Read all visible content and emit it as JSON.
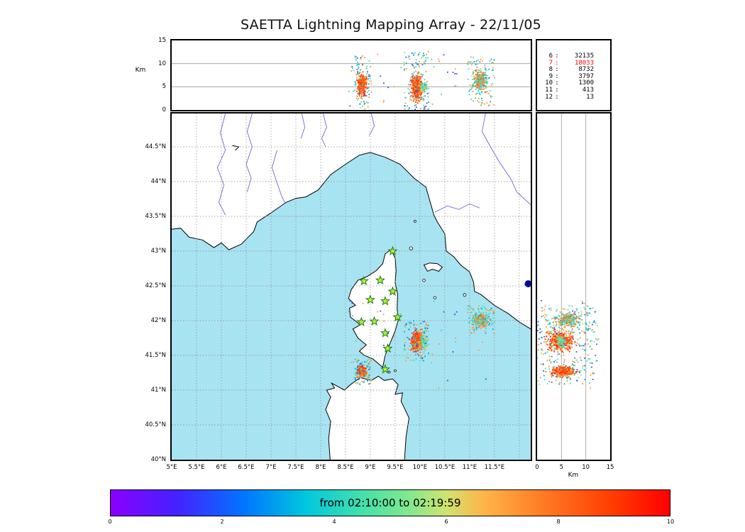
{
  "title": "SAETTA Lightning Mapping Array - 22/11/05",
  "axes": {
    "km_label_top": "Km",
    "km_label_right": "Km"
  },
  "legend": {
    "rows": [
      {
        "stations": "6",
        "count": "32135",
        "color": "#000000"
      },
      {
        "stations": "7",
        "count": "18033",
        "color": "#ff0000"
      },
      {
        "stations": "8",
        "count": "8732",
        "color": "#000000"
      },
      {
        "stations": "9",
        "count": "3797",
        "color": "#000000"
      },
      {
        "stations": "10",
        "count": "1300",
        "color": "#000000"
      },
      {
        "stations": "11",
        "count": "413",
        "color": "#000000"
      },
      {
        "stations": "12",
        "count": "13",
        "color": "#000000"
      }
    ]
  },
  "colorbar": {
    "label": "from 02:10:00 to 02:19:59",
    "ticks": [
      "0",
      "2",
      "4",
      "6",
      "8",
      "10"
    ],
    "tick_values": [
      0,
      2,
      4,
      6,
      8,
      10
    ],
    "range": [
      0,
      10
    ],
    "gradient": [
      "#8b00ff 0%",
      "#4422ff 12%",
      "#0077ff 24%",
      "#00c8dd 35%",
      "#44e0aa 45%",
      "#7fe88f 53%",
      "#cfe470 60%",
      "#ffb347 67%",
      "#ff7722 78%",
      "#ff3b00 90%",
      "#ff0000 100%"
    ]
  },
  "chart_data": {
    "type": "scatter",
    "title": "SAETTA Lightning Mapping Array - 22/11/05",
    "panels": [
      "altitude-vs-longitude",
      "map-lat-lon",
      "altitude-vs-latitude"
    ],
    "time_window": {
      "from": "02:10:00",
      "to": "02:19:59"
    },
    "lon_range": [
      5,
      12.23
    ],
    "lat_range": [
      40,
      44.98
    ],
    "alt_range": [
      0,
      15
    ],
    "alt_ticks": [
      {
        "v": 0,
        "label": "0"
      },
      {
        "v": 5,
        "label": "5"
      },
      {
        "v": 10,
        "label": "10"
      },
      {
        "v": 15,
        "label": "15"
      }
    ],
    "grid_alt": [
      5,
      10
    ],
    "lat_ticks": [
      {
        "v": 44.5,
        "label": "44.5°N"
      },
      {
        "v": 44,
        "label": "44°N"
      },
      {
        "v": 43.5,
        "label": "43.5°N"
      },
      {
        "v": 43,
        "label": "43°N"
      },
      {
        "v": 42.5,
        "label": "42.5°N"
      },
      {
        "v": 42,
        "label": "42°N"
      },
      {
        "v": 41.5,
        "label": "41.5°N"
      },
      {
        "v": 41,
        "label": "41°N"
      },
      {
        "v": 40.5,
        "label": "40.5°N"
      },
      {
        "v": 40,
        "label": "40°N"
      }
    ],
    "lon_ticks": [
      {
        "v": 5,
        "label": "5°E"
      },
      {
        "v": 5.5,
        "label": "5.5°E"
      },
      {
        "v": 6,
        "label": "6°E"
      },
      {
        "v": 6.5,
        "label": "6.5°E"
      },
      {
        "v": 7,
        "label": "7°E"
      },
      {
        "v": 7.5,
        "label": "7.5°E"
      },
      {
        "v": 8,
        "label": "8°E"
      },
      {
        "v": 8.5,
        "label": "8.5°E"
      },
      {
        "v": 9,
        "label": "9°E"
      },
      {
        "v": 9.5,
        "label": "9.5°E"
      },
      {
        "v": 10,
        "label": "10°E"
      },
      {
        "v": 10.5,
        "label": "10.5°E"
      },
      {
        "v": 11,
        "label": "11°E"
      },
      {
        "v": 11.5,
        "label": "11.5°E"
      }
    ],
    "station_source_counts": {
      "6": 32135,
      "7": 18033,
      "8": 8732,
      "9": 3797,
      "10": 1300,
      "11": 413,
      "12": 13
    },
    "sea_color": "#a8e3f2",
    "stations_lonlat": [
      [
        9.45,
        43.0
      ],
      [
        8.87,
        42.57
      ],
      [
        9.2,
        42.58
      ],
      [
        9.45,
        42.42
      ],
      [
        9.0,
        42.3
      ],
      [
        9.3,
        42.28
      ],
      [
        9.55,
        42.05
      ],
      [
        8.82,
        41.98
      ],
      [
        9.08,
        41.99
      ],
      [
        9.3,
        41.82
      ],
      [
        9.35,
        41.6
      ],
      [
        9.3,
        41.3
      ]
    ],
    "clusters": [
      {
        "name": "sw-corsica-core",
        "lon": [
          8.7,
          8.96
        ],
        "lat": [
          41.16,
          41.38
        ],
        "alt": [
          2.0,
          8.8
        ],
        "n": 300,
        "dist": "gauss",
        "palette": [
          [
            "#ff4400",
            0.38
          ],
          [
            "#ff6a22",
            0.27
          ],
          [
            "#ff9933",
            0.2
          ],
          [
            "#ff2200",
            0.15
          ]
        ]
      },
      {
        "name": "sw-corsica-halo",
        "lon": [
          8.66,
          9.02
        ],
        "lat": [
          41.08,
          41.46
        ],
        "alt": [
          0.0,
          11.8
        ],
        "n": 90,
        "dist": "uniform",
        "palette": [
          [
            "#3355ee",
            0.22
          ],
          [
            "#00aadd",
            0.2
          ],
          [
            "#44d8b8",
            0.28
          ],
          [
            "#88e888",
            0.12
          ],
          [
            "#ff9933",
            0.18
          ]
        ]
      },
      {
        "name": "east-corsica-core",
        "lon": [
          9.76,
          10.1
        ],
        "lat": [
          41.5,
          41.92
        ],
        "alt": [
          1.2,
          8.6
        ],
        "n": 430,
        "dist": "gauss",
        "palette": [
          [
            "#ff4400",
            0.4
          ],
          [
            "#ff6a22",
            0.28
          ],
          [
            "#ff9933",
            0.17
          ],
          [
            "#ff2200",
            0.15
          ]
        ]
      },
      {
        "name": "east-corsica-green",
        "lon": [
          9.98,
          10.18
        ],
        "lat": [
          41.58,
          41.82
        ],
        "alt": [
          3.6,
          6.4
        ],
        "n": 80,
        "dist": "gauss",
        "palette": [
          [
            "#88e888",
            0.62
          ],
          [
            "#44d8b8",
            0.38
          ]
        ]
      },
      {
        "name": "east-corsica-halo",
        "lon": [
          9.68,
          10.18
        ],
        "lat": [
          41.42,
          42.0
        ],
        "alt": [
          0.0,
          12.6
        ],
        "n": 120,
        "dist": "uniform",
        "palette": [
          [
            "#3355ee",
            0.2
          ],
          [
            "#00aadd",
            0.18
          ],
          [
            "#44d8b8",
            0.25
          ],
          [
            "#88e888",
            0.12
          ],
          [
            "#ff9933",
            0.25
          ]
        ]
      },
      {
        "name": "tuscan-sea-core",
        "lon": [
          11.02,
          11.42
        ],
        "lat": [
          41.88,
          42.14
        ],
        "alt": [
          3.0,
          9.6
        ],
        "n": 280,
        "dist": "gauss",
        "palette": [
          [
            "#44d8b8",
            0.3
          ],
          [
            "#2fc8c8",
            0.18
          ],
          [
            "#88e888",
            0.12
          ],
          [
            "#ff8833",
            0.22
          ],
          [
            "#ff5511",
            0.18
          ]
        ]
      },
      {
        "name": "tuscan-sea-halo",
        "lon": [
          10.95,
          11.5
        ],
        "lat": [
          41.8,
          42.22
        ],
        "alt": [
          0.8,
          11.4
        ],
        "n": 90,
        "dist": "uniform",
        "palette": [
          [
            "#00aadd",
            0.25
          ],
          [
            "#44d8b8",
            0.4
          ],
          [
            "#ff9933",
            0.35
          ]
        ]
      },
      {
        "name": "sparse-noise",
        "lon": [
          8.55,
          11.55
        ],
        "lat": [
          41.0,
          42.3
        ],
        "alt": [
          0.5,
          12.5
        ],
        "n": 40,
        "dist": "uniform",
        "palette": [
          [
            "#3355ee",
            0.3
          ],
          [
            "#44d8b8",
            0.3
          ],
          [
            "#ff9933",
            0.4
          ]
        ]
      }
    ],
    "map": {
      "river_color": "#5a5ad2",
      "mainland": [
        [
          4.8,
          43.3
        ],
        [
          5.18,
          43.33
        ],
        [
          5.35,
          43.2
        ],
        [
          5.62,
          43.16
        ],
        [
          5.85,
          43.05
        ],
        [
          6.0,
          43.12
        ],
        [
          6.15,
          43.02
        ],
        [
          6.4,
          43.1
        ],
        [
          6.65,
          43.28
        ],
        [
          6.72,
          43.42
        ],
        [
          7.0,
          43.55
        ],
        [
          7.3,
          43.7
        ],
        [
          7.5,
          43.76
        ],
        [
          7.7,
          43.78
        ],
        [
          7.95,
          43.88
        ],
        [
          8.2,
          44.1
        ],
        [
          8.5,
          44.25
        ],
        [
          8.78,
          44.38
        ],
        [
          9.0,
          44.42
        ],
        [
          9.3,
          44.35
        ],
        [
          9.6,
          44.25
        ],
        [
          9.88,
          44.05
        ],
        [
          10.12,
          43.92
        ],
        [
          10.28,
          43.52
        ],
        [
          10.35,
          43.42
        ],
        [
          10.5,
          43.25
        ],
        [
          10.53,
          43.0
        ],
        [
          10.68,
          42.92
        ],
        [
          10.82,
          42.8
        ],
        [
          11.0,
          42.7
        ],
        [
          11.08,
          42.55
        ],
        [
          11.1,
          42.42
        ],
        [
          11.22,
          42.38
        ],
        [
          11.5,
          42.22
        ],
        [
          11.78,
          42.1
        ],
        [
          12.0,
          41.98
        ],
        [
          12.3,
          41.85
        ],
        [
          12.3,
          45.2
        ],
        [
          4.8,
          45.2
        ]
      ],
      "corsica": [
        [
          9.42,
          43.02
        ],
        [
          9.5,
          42.9
        ],
        [
          9.52,
          42.72
        ],
        [
          9.5,
          42.55
        ],
        [
          9.55,
          42.38
        ],
        [
          9.54,
          42.18
        ],
        [
          9.56,
          42.0
        ],
        [
          9.5,
          41.85
        ],
        [
          9.4,
          41.68
        ],
        [
          9.3,
          41.5
        ],
        [
          9.25,
          41.33
        ],
        [
          9.05,
          41.45
        ],
        [
          8.88,
          41.5
        ],
        [
          8.78,
          41.56
        ],
        [
          8.92,
          41.65
        ],
        [
          8.75,
          41.75
        ],
        [
          8.65,
          41.88
        ],
        [
          8.8,
          41.94
        ],
        [
          8.6,
          42.05
        ],
        [
          8.58,
          42.18
        ],
        [
          8.7,
          42.22
        ],
        [
          8.56,
          42.32
        ],
        [
          8.62,
          42.45
        ],
        [
          8.75,
          42.58
        ],
        [
          8.95,
          42.64
        ],
        [
          9.12,
          42.72
        ],
        [
          9.25,
          42.82
        ],
        [
          9.3,
          42.96
        ]
      ],
      "sardinia": [
        [
          8.2,
          39.9
        ],
        [
          8.16,
          40.3
        ],
        [
          8.2,
          40.55
        ],
        [
          8.1,
          40.72
        ],
        [
          8.2,
          40.9
        ],
        [
          8.12,
          41.0
        ],
        [
          8.28,
          41.03
        ],
        [
          8.22,
          41.1
        ],
        [
          8.48,
          41.0
        ],
        [
          8.6,
          41.08
        ],
        [
          8.8,
          41.18
        ],
        [
          9.02,
          41.14
        ],
        [
          9.16,
          41.2
        ],
        [
          9.28,
          41.14
        ],
        [
          9.45,
          41.16
        ],
        [
          9.56,
          41.08
        ],
        [
          9.5,
          40.94
        ],
        [
          9.65,
          40.96
        ],
        [
          9.62,
          40.84
        ],
        [
          9.78,
          40.6
        ],
        [
          9.72,
          40.33
        ],
        [
          9.68,
          39.9
        ]
      ],
      "elba": [
        [
          10.08,
          42.8
        ],
        [
          10.2,
          42.83
        ],
        [
          10.35,
          42.82
        ],
        [
          10.45,
          42.77
        ],
        [
          10.38,
          42.71
        ],
        [
          10.25,
          42.74
        ],
        [
          10.15,
          42.71
        ]
      ],
      "islets": [
        [
          9.82,
          43.04,
          2.2
        ],
        [
          9.9,
          43.43,
          1.5
        ],
        [
          10.08,
          42.58,
          1.8
        ],
        [
          10.3,
          42.33,
          1.8
        ],
        [
          10.9,
          42.37,
          2.0
        ],
        [
          9.38,
          41.26,
          1.5
        ],
        [
          9.5,
          41.28,
          1.5
        ]
      ],
      "rivers": [
        [
          [
            6.08,
            44.98
          ],
          [
            5.98,
            44.7
          ],
          [
            6.08,
            44.45
          ],
          [
            5.92,
            44.2
          ],
          [
            6.05,
            43.95
          ],
          [
            5.95,
            43.7
          ],
          [
            6.08,
            43.52
          ]
        ],
        [
          [
            6.62,
            44.98
          ],
          [
            6.52,
            44.72
          ],
          [
            6.62,
            44.5
          ],
          [
            6.5,
            44.25
          ],
          [
            6.6,
            44.05
          ],
          [
            6.52,
            43.85
          ]
        ],
        [
          [
            7.12,
            44.45
          ],
          [
            7.02,
            44.2
          ],
          [
            7.12,
            43.98
          ],
          [
            7.22,
            43.78
          ],
          [
            7.28,
            43.7
          ]
        ],
        [
          [
            7.62,
            44.98
          ],
          [
            7.68,
            44.78
          ],
          [
            7.6,
            44.62
          ]
        ],
        [
          [
            8.05,
            44.98
          ],
          [
            8.12,
            44.78
          ],
          [
            8.02,
            44.62
          ],
          [
            8.1,
            44.5
          ]
        ],
        [
          [
            9.02,
            44.98
          ],
          [
            9.08,
            44.8
          ],
          [
            8.98,
            44.66
          ]
        ],
        [
          [
            10.3,
            43.56
          ],
          [
            10.55,
            43.65
          ],
          [
            10.78,
            43.6
          ],
          [
            11.0,
            43.68
          ],
          [
            11.2,
            43.62
          ]
        ],
        [
          [
            11.32,
            44.98
          ],
          [
            11.25,
            44.72
          ],
          [
            11.42,
            44.5
          ],
          [
            11.6,
            44.28
          ],
          [
            11.82,
            44.05
          ],
          [
            11.95,
            43.85
          ],
          [
            12.18,
            43.7
          ],
          [
            12.3,
            43.62
          ]
        ]
      ],
      "mountain_lake": [
        [
          6.22,
          44.52
        ],
        [
          6.35,
          44.5
        ],
        [
          6.28,
          44.45
        ]
      ],
      "lake": [
        12.18,
        42.53
      ]
    }
  }
}
